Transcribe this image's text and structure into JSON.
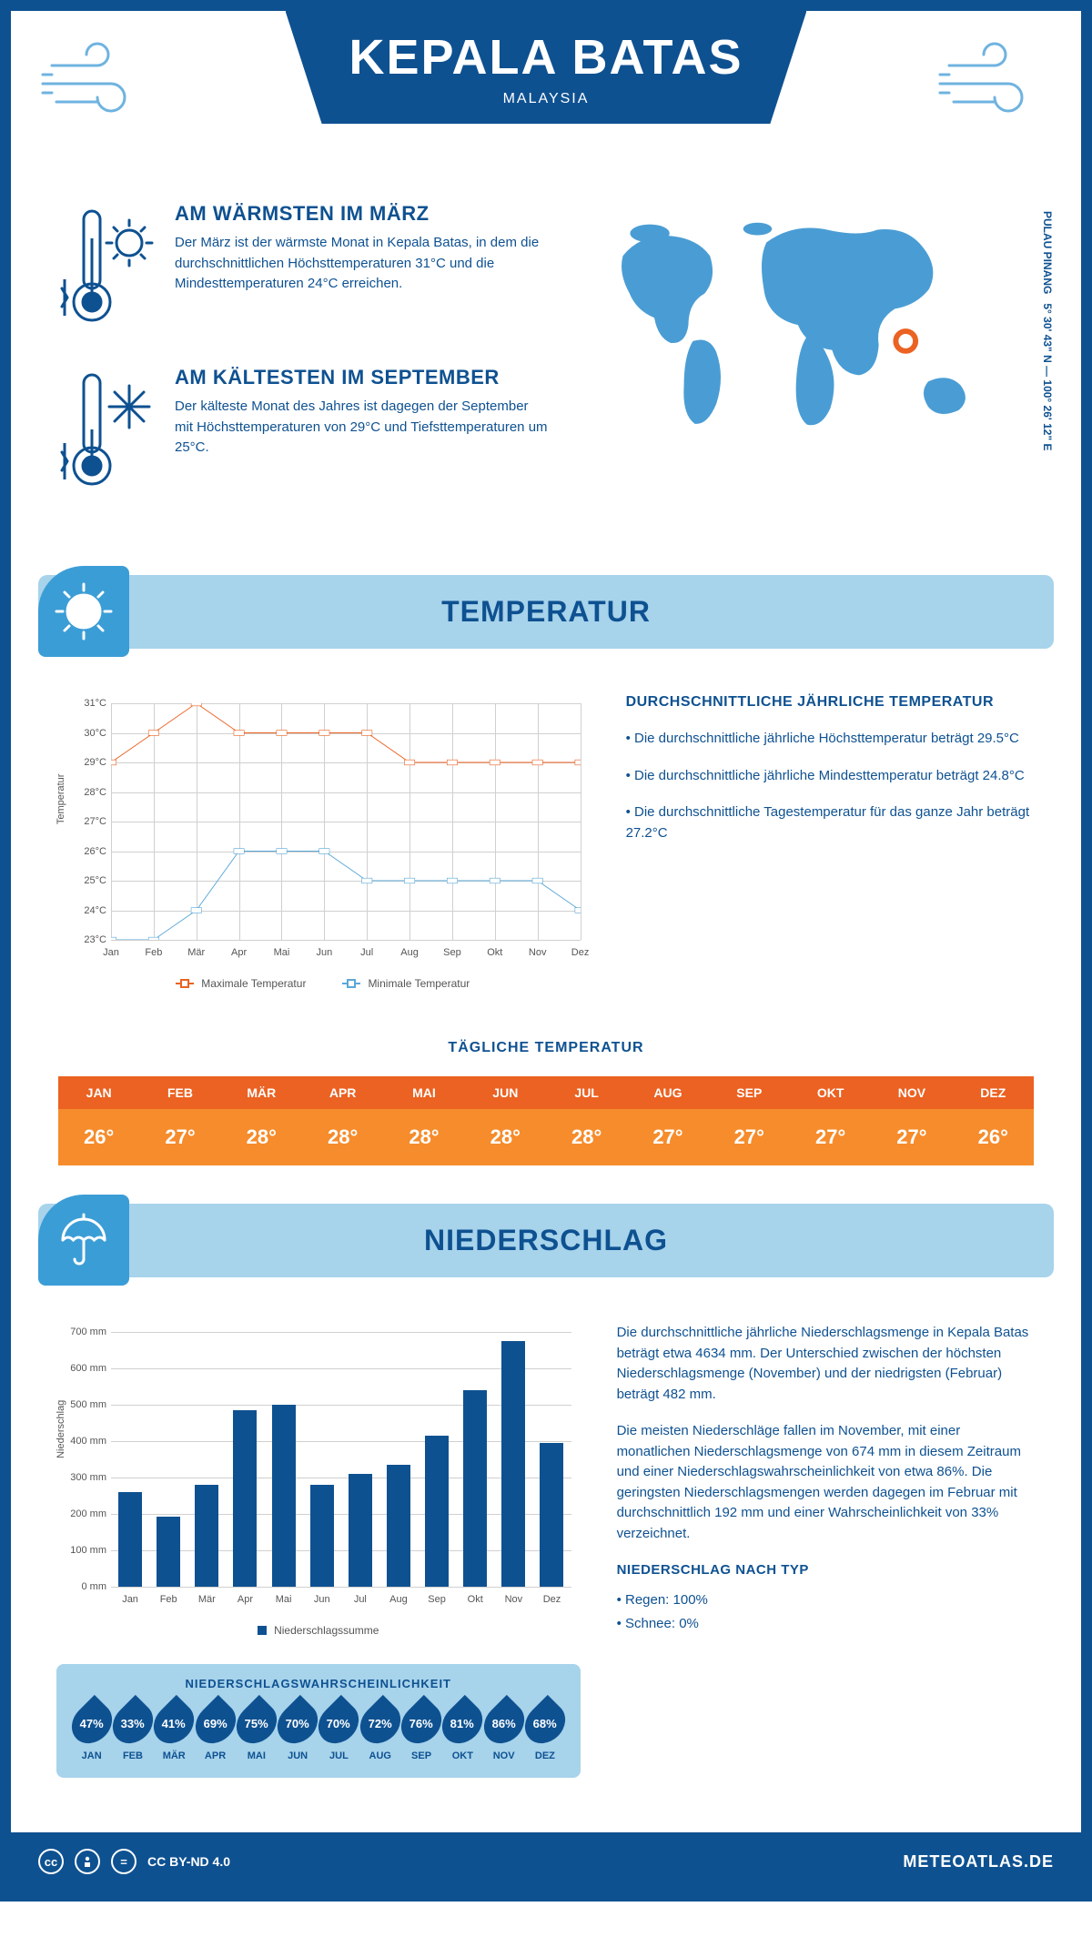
{
  "header": {
    "title": "KEPALA BATAS",
    "subtitle": "MALAYSIA"
  },
  "intro": {
    "warmest": {
      "title": "AM WÄRMSTEN IM MÄRZ",
      "desc": "Der März ist der wärmste Monat in Kepala Batas, in dem die durchschnittlichen Höchsttemperaturen 31°C und die Mindesttemperaturen 24°C erreichen."
    },
    "coldest": {
      "title": "AM KÄLTESTEN IM SEPTEMBER",
      "desc": "Der kälteste Monat des Jahres ist dagegen der September mit Höchsttemperaturen von 29°C und Tiefsttemperaturen um 25°C."
    },
    "coords": "5° 30' 43\" N — 100° 26' 12\" E",
    "region": "PULAU PINANG"
  },
  "sections": {
    "temperature": "TEMPERATUR",
    "precipitation": "NIEDERSCHLAG"
  },
  "temp_chart": {
    "type": "line",
    "months": [
      "Jan",
      "Feb",
      "Mär",
      "Apr",
      "Mai",
      "Jun",
      "Jul",
      "Aug",
      "Sep",
      "Okt",
      "Nov",
      "Dez"
    ],
    "max_values": [
      29,
      30,
      31,
      30,
      30,
      30,
      30,
      29,
      29,
      29,
      29,
      29
    ],
    "min_values": [
      23,
      23,
      24,
      26,
      26,
      26,
      25,
      25,
      25,
      25,
      25,
      24
    ],
    "ylim": [
      23,
      31
    ],
    "ytick_step": 1,
    "y_axis_label": "Temperatur",
    "max_color": "#eb6222",
    "min_color": "#5aa8d8",
    "grid_color": "#d0d0d0",
    "legend_max": "Maximale Temperatur",
    "legend_min": "Minimale Temperatur"
  },
  "temp_text": {
    "heading": "DURCHSCHNITTLICHE JÄHRLICHE TEMPERATUR",
    "bullets": [
      "• Die durchschnittliche jährliche Höchsttemperatur beträgt 29.5°C",
      "• Die durchschnittliche jährliche Mindesttemperatur beträgt 24.8°C",
      "• Die durchschnittliche Tagestemperatur für das ganze Jahr beträgt 27.2°C"
    ]
  },
  "daily_temp": {
    "title": "TÄGLICHE TEMPERATUR",
    "months": [
      "JAN",
      "FEB",
      "MÄR",
      "APR",
      "MAI",
      "JUN",
      "JUL",
      "AUG",
      "SEP",
      "OKT",
      "NOV",
      "DEZ"
    ],
    "values": [
      "26°",
      "27°",
      "28°",
      "28°",
      "28°",
      "28°",
      "28°",
      "27°",
      "27°",
      "27°",
      "27°",
      "26°"
    ],
    "header_bg": "#eb6222",
    "value_bg": "#f68c2c"
  },
  "precip_chart": {
    "type": "bar",
    "months": [
      "Jan",
      "Feb",
      "Mär",
      "Apr",
      "Mai",
      "Jun",
      "Jul",
      "Aug",
      "Sep",
      "Okt",
      "Nov",
      "Dez"
    ],
    "values": [
      260,
      192,
      280,
      485,
      500,
      280,
      310,
      335,
      415,
      540,
      674,
      395
    ],
    "ylim": [
      0,
      700
    ],
    "ytick_step": 100,
    "y_axis_label": "Niederschlag",
    "bar_color": "#0e5191",
    "grid_color": "#d0d0d0",
    "legend": "Niederschlagssumme",
    "y_unit": " mm"
  },
  "precip_text": {
    "p1": "Die durchschnittliche jährliche Niederschlagsmenge in Kepala Batas beträgt etwa 4634 mm. Der Unterschied zwischen der höchsten Niederschlagsmenge (November) und der niedrigsten (Februar) beträgt 482 mm.",
    "p2": "Die meisten Niederschläge fallen im November, mit einer monatlichen Niederschlagsmenge von 674 mm in diesem Zeitraum und einer Niederschlagswahrscheinlichkeit von etwa 86%. Die geringsten Niederschlagsmengen werden dagegen im Februar mit durchschnittlich 192 mm und einer Wahrscheinlichkeit von 33% verzeichnet.",
    "type_heading": "NIEDERSCHLAG NACH TYP",
    "type_rain": "• Regen: 100%",
    "type_snow": "• Schnee: 0%"
  },
  "prob_panel": {
    "title": "NIEDERSCHLAGSWAHRSCHEINLICHKEIT",
    "months": [
      "JAN",
      "FEB",
      "MÄR",
      "APR",
      "MAI",
      "JUN",
      "JUL",
      "AUG",
      "SEP",
      "OKT",
      "NOV",
      "DEZ"
    ],
    "values": [
      "47%",
      "33%",
      "41%",
      "69%",
      "75%",
      "70%",
      "70%",
      "72%",
      "76%",
      "81%",
      "86%",
      "68%"
    ],
    "drop_color": "#0e5191",
    "panel_bg": "#a7d3eb"
  },
  "footer": {
    "license": "CC BY-ND 4.0",
    "brand": "METEOATLAS.DE"
  },
  "colors": {
    "brand_blue": "#0e5191",
    "light_blue": "#a7d3eb",
    "mid_blue": "#3b9dd6",
    "map_blue": "#4a9dd4",
    "orange": "#eb6222",
    "orange_light": "#f68c2c"
  }
}
